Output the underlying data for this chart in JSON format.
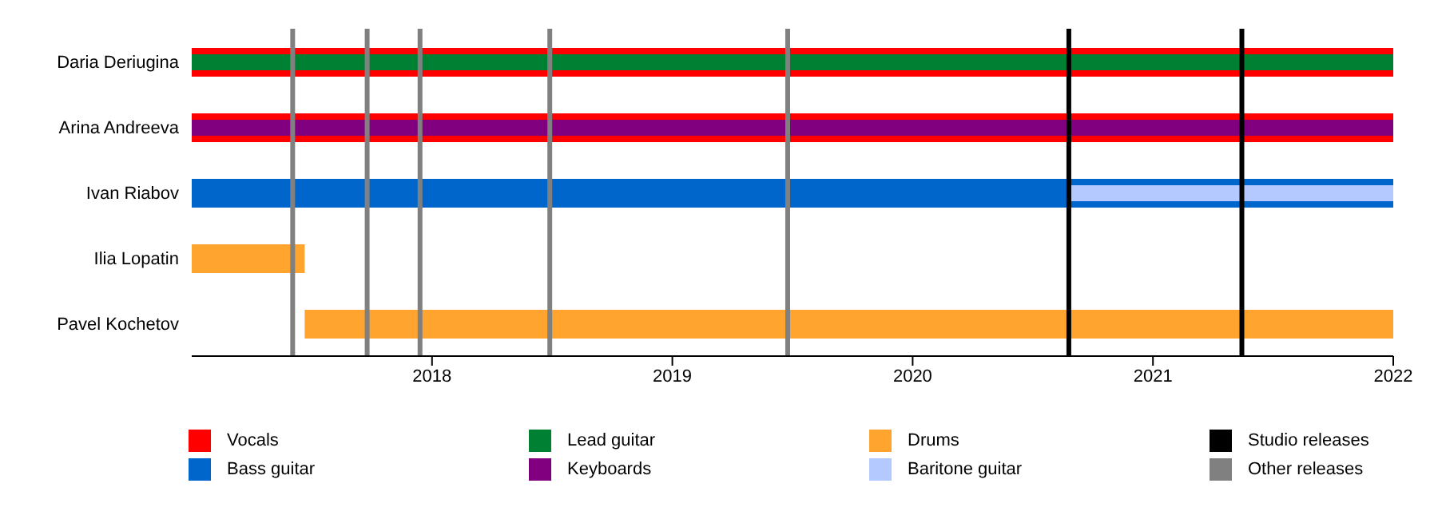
{
  "chart_data": {
    "type": "bar",
    "orientation": "horizontal",
    "categories": [
      "Daria Deriugina",
      "Arina Andreeva",
      "Ivan Riabov",
      "Ilia Lopatin",
      "Pavel Kochetov"
    ],
    "series": [
      {
        "name": "Vocals",
        "color": "#ff0000",
        "base": [
          2017,
          2017,
          null,
          null,
          null
        ],
        "values": [
          5,
          5,
          null,
          null,
          null
        ]
      },
      {
        "name": "Bass guitar",
        "color": "#0066cc",
        "base": [
          null,
          null,
          2017,
          null,
          null
        ],
        "values": [
          null,
          null,
          5,
          null,
          null
        ]
      },
      {
        "name": "Lead guitar",
        "color": "#008033",
        "base": [
          2017,
          null,
          null,
          null,
          null
        ],
        "values": [
          5,
          null,
          null,
          null,
          null
        ]
      },
      {
        "name": "Keyboards",
        "color": "#800080",
        "base": [
          null,
          2017,
          null,
          null,
          null
        ],
        "values": [
          null,
          5,
          null,
          null,
          null
        ]
      },
      {
        "name": "Drums",
        "color": "#ffa52f",
        "base": [
          null,
          null,
          null,
          2017,
          2017.47
        ],
        "values": [
          null,
          null,
          null,
          0.47,
          4.53
        ]
      },
      {
        "name": "Baritone guitar",
        "color": "#b3c9ff",
        "base": [
          null,
          null,
          2020.66,
          null,
          null
        ],
        "values": [
          null,
          null,
          1.34,
          null,
          null
        ]
      }
    ],
    "ref_lines": [
      {
        "axis": "x",
        "value": 2020.65,
        "label": "Studio releases",
        "color": "#000000"
      },
      {
        "axis": "x",
        "value": 2021.37,
        "color": "#000000"
      },
      {
        "axis": "x",
        "value": 2017.42,
        "label": "Other releases",
        "color": "#808080"
      },
      {
        "axis": "x",
        "value": 2017.73,
        "color": "#808080"
      },
      {
        "axis": "x",
        "value": 2017.95,
        "color": "#808080"
      },
      {
        "axis": "x",
        "value": 2018.49,
        "color": "#808080"
      },
      {
        "axis": "x",
        "value": 2019.48,
        "color": "#808080"
      }
    ],
    "xlim": [
      2017,
      2022
    ],
    "xticks": [
      2018,
      2019,
      2020,
      2021,
      2022
    ],
    "grid": false,
    "legend": "bottom"
  }
}
